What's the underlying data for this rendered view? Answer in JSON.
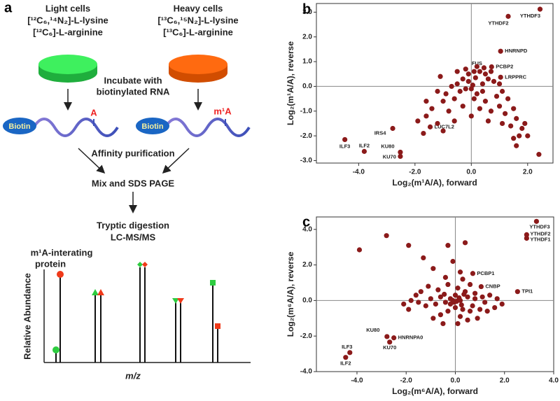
{
  "diagram": {
    "panel_label": "a",
    "light": {
      "title": "Light cells",
      "lysine": "[¹²C₆,¹⁴N₂]-L-lysine",
      "arginine": "[¹²C₆]-L-arginine"
    },
    "heavy": {
      "title": "Heavy cells",
      "lysine": "[¹³C₆,¹⁵N₂]-L-lysine",
      "arginine": "[¹³C₆]-L-arginine"
    },
    "incubate": [
      "Incubate with",
      "biotinylated RNA"
    ],
    "biotin_left": "Biotin",
    "mod_left": "A",
    "biotin_right": "Biotin",
    "mod_right": "m¹A",
    "affinity": "Affinity  purification",
    "mix": "Mix and SDS PAGE",
    "digestion": [
      "Tryptic digestion",
      "LC-MS/MS"
    ],
    "protein": [
      "m¹A-interating",
      "protein"
    ],
    "y_axis": "Relative Abundance",
    "x_axis": "m/z"
  },
  "chart_data": [
    {
      "type": "scatter",
      "panel_label": "b",
      "xlabel": "Log₂(m¹A/A), forward",
      "ylabel": "Log₂(m¹A/A), reverse",
      "xlim": [
        -5.5,
        2.9
      ],
      "ylim": [
        -3.1,
        3.35
      ],
      "xticks": [
        {
          "value": -4,
          "label": "-4.0"
        },
        {
          "value": -2,
          "label": "-2.0"
        },
        {
          "value": 0,
          "label": "0.0"
        },
        {
          "value": 2,
          "label": "2.0"
        }
      ],
      "yticks": [
        {
          "value": -3,
          "label": "-3.0"
        },
        {
          "value": -2,
          "label": "-2.0"
        },
        {
          "value": -1,
          "label": "-1.0"
        },
        {
          "value": 0,
          "label": "0.0"
        },
        {
          "value": 1,
          "label": "1.0"
        },
        {
          "value": 2,
          "label": "2.0"
        },
        {
          "value": 3,
          "label": "3.0"
        }
      ],
      "zero_lines": true,
      "series": [
        {
          "color": "#8b1a1a",
          "x": [
            2.44,
            1.31,
            1.04,
            0.72,
            0.45,
            1.04,
            -2.79,
            -1.46,
            -4.49,
            -3.8,
            -2.52,
            -2.52,
            -0.3,
            -0.1,
            0.1,
            0.2,
            -0.2,
            0.3,
            0.5,
            0.6,
            0.8,
            -0.5,
            -0.7,
            -0.4,
            -0.2,
            0.0,
            0.2,
            0.4,
            -0.9,
            -1.2,
            -1.0,
            -0.6,
            -1.4,
            -1.6,
            -0.8,
            -0.3,
            0.1,
            0.5,
            0.9,
            1.1,
            1.3,
            1.0,
            0.7,
            1.2,
            1.5,
            1.6,
            1.4,
            1.8,
            1.9,
            1.7,
            2.0,
            1.6,
            1.5,
            2.4,
            -1.9,
            -1.7,
            -1.2,
            -1.0,
            -0.6,
            0.0,
            0.3,
            -0.1,
            0.05,
            0.15,
            0.4,
            -1.1,
            -0.5,
            0.7,
            -1.6,
            1.0,
            0.6,
            1.1
          ],
          "values": [
            3.12,
            2.83,
            1.42,
            0.79,
            0.75,
            0.37,
            -1.7,
            -1.64,
            -2.15,
            -2.63,
            -2.66,
            -2.83,
            0.3,
            0.5,
            0.6,
            0.8,
            0.7,
            0.6,
            0.5,
            0.3,
            0.2,
            0.1,
            0.0,
            -0.2,
            -0.1,
            -0.1,
            -0.3,
            -0.2,
            -0.3,
            -0.2,
            -0.6,
            -0.5,
            -0.9,
            -1.2,
            -1.0,
            -0.8,
            -0.5,
            -0.6,
            -0.4,
            -0.2,
            -0.5,
            -0.8,
            -1.0,
            -1.1,
            -0.9,
            -1.3,
            -1.6,
            -1.7,
            -1.5,
            -2.0,
            -2.0,
            -2.4,
            -2.1,
            -2.75,
            -1.4,
            -1.9,
            -1.5,
            -1.8,
            -1.4,
            -1.2,
            -0.9,
            0.2,
            0.05,
            0.35,
            0.1,
            0.4,
            0.6,
            0.6,
            -0.6,
            0.1,
            -1.4,
            -1.5
          ],
          "labels": [
            "YTHDF3",
            "YTHDF2",
            "HNRNPD",
            "PCBP2",
            "FUS",
            "LRPPRC",
            "IRS4",
            "LUC7L2",
            "ILF3",
            "ILF2",
            "KU80",
            "KU70",
            null,
            null,
            null,
            null,
            null,
            null,
            null,
            null,
            null,
            null,
            null,
            null,
            null,
            null,
            null,
            null,
            null,
            null,
            null,
            null,
            null,
            null,
            null,
            null,
            null,
            null,
            null,
            null,
            null,
            null,
            null,
            null,
            null,
            null,
            null,
            null,
            null,
            null,
            null,
            null,
            null,
            null,
            null,
            null,
            null,
            null,
            null,
            null,
            null,
            null,
            null,
            null,
            null,
            null,
            null,
            null,
            null,
            null,
            null,
            null
          ]
        }
      ]
    },
    {
      "type": "scatter",
      "panel_label": "c",
      "xlabel": "Log₂(m⁶A/A), forward",
      "ylabel": "Log₂(m⁶A/A), reverse",
      "xlim": [
        -5.65,
        4.0
      ],
      "ylim": [
        -4.0,
        4.7
      ],
      "xticks": [
        {
          "value": -4,
          "label": "-4.0"
        },
        {
          "value": -2,
          "label": "-2.0"
        },
        {
          "value": 0,
          "label": "0.0"
        },
        {
          "value": 2,
          "label": "2.0"
        },
        {
          "value": 4,
          "label": "4.0"
        }
      ],
      "yticks": [
        {
          "value": -4,
          "label": "-4.0"
        },
        {
          "value": -2,
          "label": "-2.0"
        },
        {
          "value": 0,
          "label": "0.0"
        },
        {
          "value": 2,
          "label": "2.0"
        },
        {
          "value": 4,
          "label": "4.0"
        }
      ],
      "zero_lines": true,
      "series": [
        {
          "color": "#8b1a1a",
          "x": [
            3.3,
            2.9,
            2.9,
            0.71,
            1.05,
            2.53,
            -2.78,
            -2.5,
            -2.67,
            -4.29,
            -4.46,
            -3.9,
            -2.8,
            -1.9,
            -1.3,
            -0.9,
            -0.3,
            0.4,
            -0.1,
            -0.4,
            0.2,
            0.3,
            0.6,
            0.8,
            1.1,
            1.4,
            1.7,
            1.9,
            1.6,
            1.2,
            1.0,
            0.7,
            0.5,
            0.2,
            0.0,
            -0.2,
            -0.4,
            -0.6,
            -0.8,
            -1.0,
            -1.2,
            -1.5,
            -1.8,
            -2.1,
            -1.4,
            -1.1,
            -0.7,
            -0.3,
            0.1,
            0.4,
            0.6,
            0.3,
            0.0,
            -0.3,
            -0.6,
            -0.9,
            0.2,
            0.5,
            0.1,
            0.9,
            -0.5,
            -0.2,
            0.15,
            -0.05,
            0.35,
            -0.45,
            0.25,
            -1.6,
            -1.9,
            0.8,
            1.3,
            -0.1,
            0.05
          ],
          "values": [
            4.45,
            3.7,
            3.5,
            1.52,
            0.78,
            0.5,
            -2.03,
            -2.1,
            -2.34,
            -2.93,
            -3.2,
            2.85,
            3.65,
            3.1,
            2.4,
            1.8,
            3.1,
            3.25,
            2.2,
            1.3,
            1.6,
            1.2,
            0.9,
            0.4,
            0.2,
            0.3,
            0.1,
            -0.2,
            -0.4,
            -0.1,
            -0.5,
            -0.3,
            0.2,
            0.0,
            0.3,
            0.1,
            -0.1,
            0.2,
            -0.2,
            0.1,
            -0.3,
            -0.1,
            0.0,
            -0.2,
            0.5,
            0.8,
            0.6,
            0.9,
            0.7,
            0.5,
            -0.6,
            -0.5,
            -0.4,
            -0.6,
            -0.8,
            -1.0,
            -0.9,
            -1.1,
            -1.3,
            -1.0,
            -1.3,
            -0.2,
            0.15,
            -0.1,
            0.35,
            0.35,
            -0.25,
            0.3,
            -0.5,
            0.1,
            -0.6,
            0.0,
            -0.05
          ],
          "labels": [
            "YTHDF3",
            "YTHDF2",
            "YTHDF1",
            "PCBP1",
            "CNBP",
            "TPI1",
            "KU80",
            "HNRNPA0",
            "KU70",
            "ILF3",
            "ILF2",
            null,
            null,
            null,
            null,
            null,
            null,
            null,
            null,
            null,
            null,
            null,
            null,
            null,
            null,
            null,
            null,
            null,
            null,
            null,
            null,
            null,
            null,
            null,
            null,
            null,
            null,
            null,
            null,
            null,
            null,
            null,
            null,
            null,
            null,
            null,
            null,
            null,
            null,
            null,
            null,
            null,
            null,
            null,
            null,
            null,
            null,
            null,
            null,
            null,
            null,
            null,
            null,
            null,
            null,
            null,
            null,
            null,
            null,
            null,
            null,
            null
          ]
        }
      ]
    }
  ]
}
